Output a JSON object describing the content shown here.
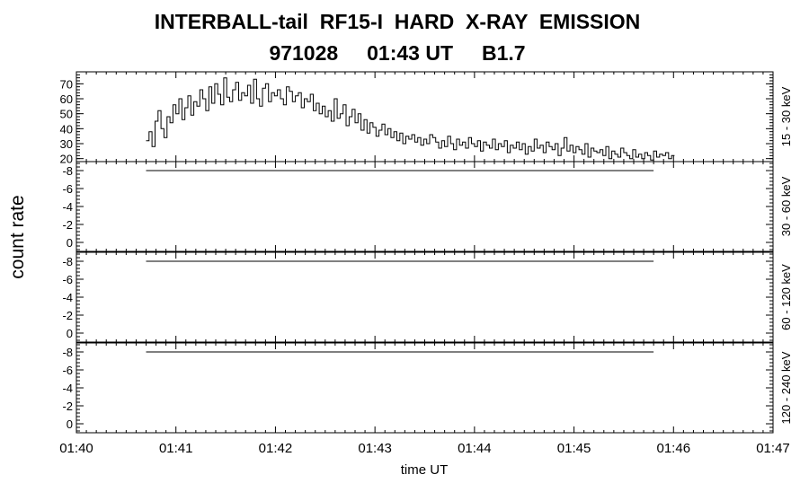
{
  "title_line1": "INTERBALL-tail  RF15-I  HARD  X-RAY  EMISSION",
  "title_line2": "971028     01:43 UT     B1.7",
  "ylabel": "count rate",
  "xlabel": "time UT",
  "chart_data": {
    "type": "line",
    "x_ticks": [
      "01:40",
      "01:41",
      "01:42",
      "01:43",
      "01:44",
      "01:45",
      "01:46",
      "01:47"
    ],
    "x_range_min": [
      0,
      7
    ],
    "panels": [
      {
        "label": "15 - 30 keV",
        "yticks": [
          "20",
          "30",
          "40",
          "50",
          "60",
          "70"
        ],
        "ylim": [
          18,
          78
        ],
        "step": true,
        "x_start_min": 0.7,
        "x_step_min": 0.03,
        "values": [
          32,
          38,
          28,
          45,
          52,
          40,
          34,
          48,
          44,
          56,
          50,
          60,
          46,
          54,
          62,
          49,
          58,
          55,
          66,
          60,
          52,
          68,
          57,
          70,
          63,
          56,
          74,
          61,
          58,
          66,
          71,
          59,
          64,
          62,
          69,
          57,
          73,
          60,
          55,
          67,
          70,
          58,
          64,
          62,
          66,
          60,
          56,
          68,
          65,
          58,
          62,
          64,
          54,
          60,
          58,
          63,
          52,
          57,
          50,
          55,
          48,
          52,
          45,
          60,
          47,
          50,
          56,
          42,
          48,
          53,
          44,
          50,
          39,
          46,
          37,
          44,
          41,
          35,
          39,
          43,
          36,
          40,
          34,
          38,
          32,
          37,
          30,
          35,
          33,
          36,
          31,
          34,
          29,
          33,
          30,
          36,
          34,
          31,
          27,
          32,
          28,
          35,
          30,
          26,
          33,
          29,
          31,
          27,
          34,
          30,
          28,
          32,
          25,
          31,
          29,
          27,
          33,
          26,
          30,
          28,
          32,
          24,
          29,
          27,
          31,
          26,
          30,
          23,
          28,
          25,
          33,
          27,
          29,
          24,
          31,
          28,
          26,
          30,
          22,
          27,
          34,
          25,
          29,
          24,
          28,
          26,
          23,
          30,
          21,
          27,
          25,
          24,
          26,
          22,
          28,
          20,
          25,
          23,
          21,
          27,
          24,
          22,
          20,
          26,
          21,
          23,
          20,
          24,
          22,
          19,
          25,
          21,
          23,
          22,
          24,
          20,
          22
        ]
      },
      {
        "label": "30 - 60 keV",
        "yticks": [
          "-8",
          "-6",
          "-4",
          "-2",
          "0"
        ],
        "ylim": [
          1,
          -9
        ],
        "step": false,
        "x_start_min": 0.7,
        "x_step_min": 5.1,
        "values": [
          -8,
          -8
        ]
      },
      {
        "label": "60 - 120 keV",
        "yticks": [
          "-8",
          "-6",
          "-4",
          "-2",
          "0"
        ],
        "ylim": [
          1,
          -9
        ],
        "step": false,
        "x_start_min": 0.7,
        "x_step_min": 5.1,
        "values": [
          -8,
          -8
        ]
      },
      {
        "label": "120 - 240 keV",
        "yticks": [
          "-8",
          "-6",
          "-4",
          "-2",
          "0"
        ],
        "ylim": [
          1,
          -9
        ],
        "step": false,
        "x_start_min": 0.7,
        "x_step_min": 5.1,
        "values": [
          -8,
          -8
        ]
      }
    ]
  }
}
